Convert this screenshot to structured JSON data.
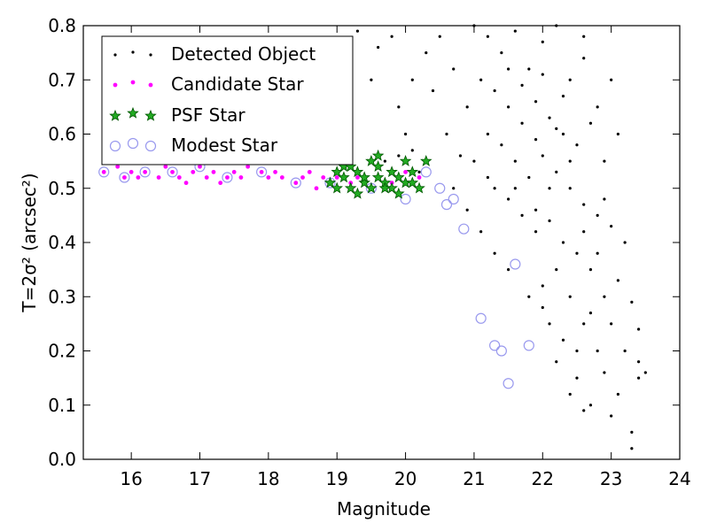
{
  "chart_data": {
    "type": "scatter",
    "xlabel": "Magnitude",
    "ylabel": "T=2σ² (arcsec²)",
    "xlim": [
      15.3,
      24
    ],
    "ylim": [
      0.0,
      0.8
    ],
    "x_ticks": [
      "16",
      "17",
      "18",
      "19",
      "20",
      "21",
      "22",
      "23",
      "24"
    ],
    "y_ticks": [
      "0.0",
      "0.1",
      "0.2",
      "0.3",
      "0.4",
      "0.5",
      "0.6",
      "0.7",
      "0.8"
    ],
    "grid": false,
    "legend_position": "top-left",
    "series": [
      {
        "name": "Detected Object",
        "marker": "dot",
        "color": "#000000",
        "points": [
          [
            21.0,
            0.8
          ],
          [
            21.2,
            0.78
          ],
          [
            21.4,
            0.75
          ],
          [
            21.6,
            0.79
          ],
          [
            21.8,
            0.72
          ],
          [
            22.0,
            0.77
          ],
          [
            22.2,
            0.8
          ],
          [
            22.4,
            0.7
          ],
          [
            22.6,
            0.74
          ],
          [
            21.1,
            0.7
          ],
          [
            21.3,
            0.68
          ],
          [
            21.5,
            0.65
          ],
          [
            21.7,
            0.62
          ],
          [
            21.9,
            0.66
          ],
          [
            22.1,
            0.63
          ],
          [
            22.3,
            0.6
          ],
          [
            22.5,
            0.58
          ],
          [
            22.7,
            0.62
          ],
          [
            21.2,
            0.6
          ],
          [
            21.4,
            0.58
          ],
          [
            21.6,
            0.55
          ],
          [
            21.8,
            0.52
          ],
          [
            22.0,
            0.56
          ],
          [
            22.2,
            0.53
          ],
          [
            22.4,
            0.5
          ],
          [
            22.6,
            0.47
          ],
          [
            22.8,
            0.45
          ],
          [
            21.0,
            0.55
          ],
          [
            21.3,
            0.5
          ],
          [
            21.5,
            0.48
          ],
          [
            21.7,
            0.45
          ],
          [
            21.9,
            0.42
          ],
          [
            22.1,
            0.44
          ],
          [
            22.3,
            0.4
          ],
          [
            22.5,
            0.38
          ],
          [
            22.7,
            0.35
          ],
          [
            22.9,
            0.3
          ],
          [
            23.0,
            0.25
          ],
          [
            23.2,
            0.2
          ],
          [
            23.4,
            0.15
          ],
          [
            22.2,
            0.35
          ],
          [
            22.4,
            0.3
          ],
          [
            22.6,
            0.25
          ],
          [
            22.8,
            0.2
          ],
          [
            22.0,
            0.28
          ],
          [
            22.3,
            0.22
          ],
          [
            22.5,
            0.15
          ],
          [
            22.7,
            0.1
          ],
          [
            23.1,
            0.12
          ],
          [
            23.3,
            0.05
          ],
          [
            23.4,
            0.18
          ],
          [
            23.5,
            0.16
          ],
          [
            23.2,
            0.4
          ],
          [
            22.9,
            0.55
          ],
          [
            23.1,
            0.6
          ],
          [
            22.8,
            0.65
          ],
          [
            23.0,
            0.7
          ],
          [
            22.6,
            0.78
          ],
          [
            20.5,
            0.78
          ],
          [
            20.7,
            0.72
          ],
          [
            20.4,
            0.68
          ],
          [
            20.9,
            0.65
          ],
          [
            20.6,
            0.6
          ],
          [
            20.8,
            0.56
          ],
          [
            20.3,
            0.75
          ],
          [
            20.1,
            0.7
          ],
          [
            19.9,
            0.65
          ],
          [
            20.0,
            0.6
          ],
          [
            19.8,
            0.78
          ],
          [
            19.6,
            0.76
          ],
          [
            19.5,
            0.7
          ],
          [
            19.3,
            0.79
          ],
          [
            19.7,
            0.55
          ],
          [
            19.9,
            0.56
          ],
          [
            20.1,
            0.57
          ],
          [
            20.2,
            0.53
          ],
          [
            20.7,
            0.5
          ],
          [
            20.9,
            0.46
          ],
          [
            21.1,
            0.42
          ],
          [
            21.3,
            0.38
          ],
          [
            21.5,
            0.35
          ],
          [
            21.8,
            0.3
          ],
          [
            22.0,
            0.32
          ],
          [
            22.1,
            0.25
          ],
          [
            22.2,
            0.18
          ],
          [
            22.4,
            0.12
          ],
          [
            22.6,
            0.09
          ],
          [
            22.9,
            0.16
          ],
          [
            23.3,
            0.02
          ],
          [
            23.0,
            0.08
          ],
          [
            22.1,
            0.5
          ],
          [
            21.9,
            0.46
          ],
          [
            22.6,
            0.42
          ],
          [
            23.1,
            0.33
          ],
          [
            22.8,
            0.38
          ],
          [
            21.5,
            0.72
          ],
          [
            21.7,
            0.69
          ],
          [
            22.0,
            0.71
          ],
          [
            22.3,
            0.67
          ],
          [
            21.2,
            0.52
          ],
          [
            23.3,
            0.29
          ],
          [
            23.4,
            0.24
          ],
          [
            22.5,
            0.2
          ],
          [
            22.7,
            0.27
          ],
          [
            21.9,
            0.59
          ],
          [
            22.4,
            0.55
          ],
          [
            21.6,
            0.5
          ],
          [
            22.9,
            0.48
          ],
          [
            23.0,
            0.43
          ],
          [
            22.2,
            0.61
          ]
        ]
      },
      {
        "name": "Candidate Star",
        "marker": "small-circle",
        "color": "#ff00ff",
        "points": [
          [
            15.6,
            0.53
          ],
          [
            15.8,
            0.54
          ],
          [
            15.9,
            0.52
          ],
          [
            16.0,
            0.53
          ],
          [
            16.1,
            0.52
          ],
          [
            16.2,
            0.53
          ],
          [
            16.4,
            0.52
          ],
          [
            16.5,
            0.54
          ],
          [
            16.6,
            0.53
          ],
          [
            16.7,
            0.52
          ],
          [
            16.9,
            0.53
          ],
          [
            17.0,
            0.54
          ],
          [
            17.1,
            0.52
          ],
          [
            17.2,
            0.53
          ],
          [
            17.4,
            0.52
          ],
          [
            17.5,
            0.53
          ],
          [
            17.6,
            0.52
          ],
          [
            17.7,
            0.54
          ],
          [
            17.9,
            0.53
          ],
          [
            18.0,
            0.52
          ],
          [
            18.2,
            0.52
          ],
          [
            18.4,
            0.51
          ],
          [
            18.5,
            0.52
          ],
          [
            18.6,
            0.53
          ],
          [
            18.8,
            0.52
          ],
          [
            18.9,
            0.51
          ],
          [
            19.0,
            0.52
          ],
          [
            19.2,
            0.51
          ],
          [
            19.3,
            0.52
          ],
          [
            19.5,
            0.5
          ],
          [
            19.6,
            0.52
          ],
          [
            19.8,
            0.51
          ],
          [
            20.0,
            0.53
          ],
          [
            20.2,
            0.52
          ],
          [
            15.7,
            0.55
          ],
          [
            16.3,
            0.55
          ],
          [
            17.3,
            0.51
          ],
          [
            18.1,
            0.53
          ],
          [
            18.7,
            0.5
          ],
          [
            16.8,
            0.51
          ]
        ]
      },
      {
        "name": "PSF Star",
        "marker": "star",
        "color": "#00aa00",
        "points": [
          [
            18.9,
            0.51
          ],
          [
            19.0,
            0.5
          ],
          [
            19.1,
            0.52
          ],
          [
            19.2,
            0.5
          ],
          [
            19.3,
            0.53
          ],
          [
            19.4,
            0.51
          ],
          [
            19.5,
            0.5
          ],
          [
            19.6,
            0.52
          ],
          [
            19.7,
            0.51
          ],
          [
            19.8,
            0.5
          ],
          [
            19.9,
            0.52
          ],
          [
            20.0,
            0.51
          ],
          [
            20.1,
            0.53
          ],
          [
            20.2,
            0.5
          ],
          [
            19.3,
            0.49
          ],
          [
            19.5,
            0.55
          ],
          [
            19.6,
            0.56
          ],
          [
            19.8,
            0.53
          ],
          [
            20.0,
            0.55
          ],
          [
            20.3,
            0.55
          ],
          [
            19.1,
            0.54
          ],
          [
            19.4,
            0.52
          ],
          [
            19.7,
            0.5
          ],
          [
            19.9,
            0.49
          ],
          [
            20.1,
            0.51
          ],
          [
            19.0,
            0.53
          ],
          [
            19.2,
            0.54
          ],
          [
            19.6,
            0.54
          ]
        ]
      },
      {
        "name": "Modest Star",
        "marker": "open-circle",
        "color": "#9999ee",
        "points": [
          [
            15.6,
            0.53
          ],
          [
            15.9,
            0.52
          ],
          [
            16.2,
            0.53
          ],
          [
            16.6,
            0.53
          ],
          [
            17.0,
            0.54
          ],
          [
            17.4,
            0.52
          ],
          [
            17.9,
            0.53
          ],
          [
            18.4,
            0.51
          ],
          [
            18.9,
            0.51
          ],
          [
            19.5,
            0.5
          ],
          [
            20.0,
            0.48
          ],
          [
            20.3,
            0.53
          ],
          [
            20.6,
            0.47
          ],
          [
            20.7,
            0.48
          ],
          [
            20.85,
            0.425
          ],
          [
            21.6,
            0.36
          ],
          [
            21.1,
            0.26
          ],
          [
            21.3,
            0.21
          ],
          [
            21.4,
            0.2
          ],
          [
            21.8,
            0.21
          ],
          [
            21.5,
            0.14
          ],
          [
            20.5,
            0.5
          ]
        ]
      }
    ]
  }
}
